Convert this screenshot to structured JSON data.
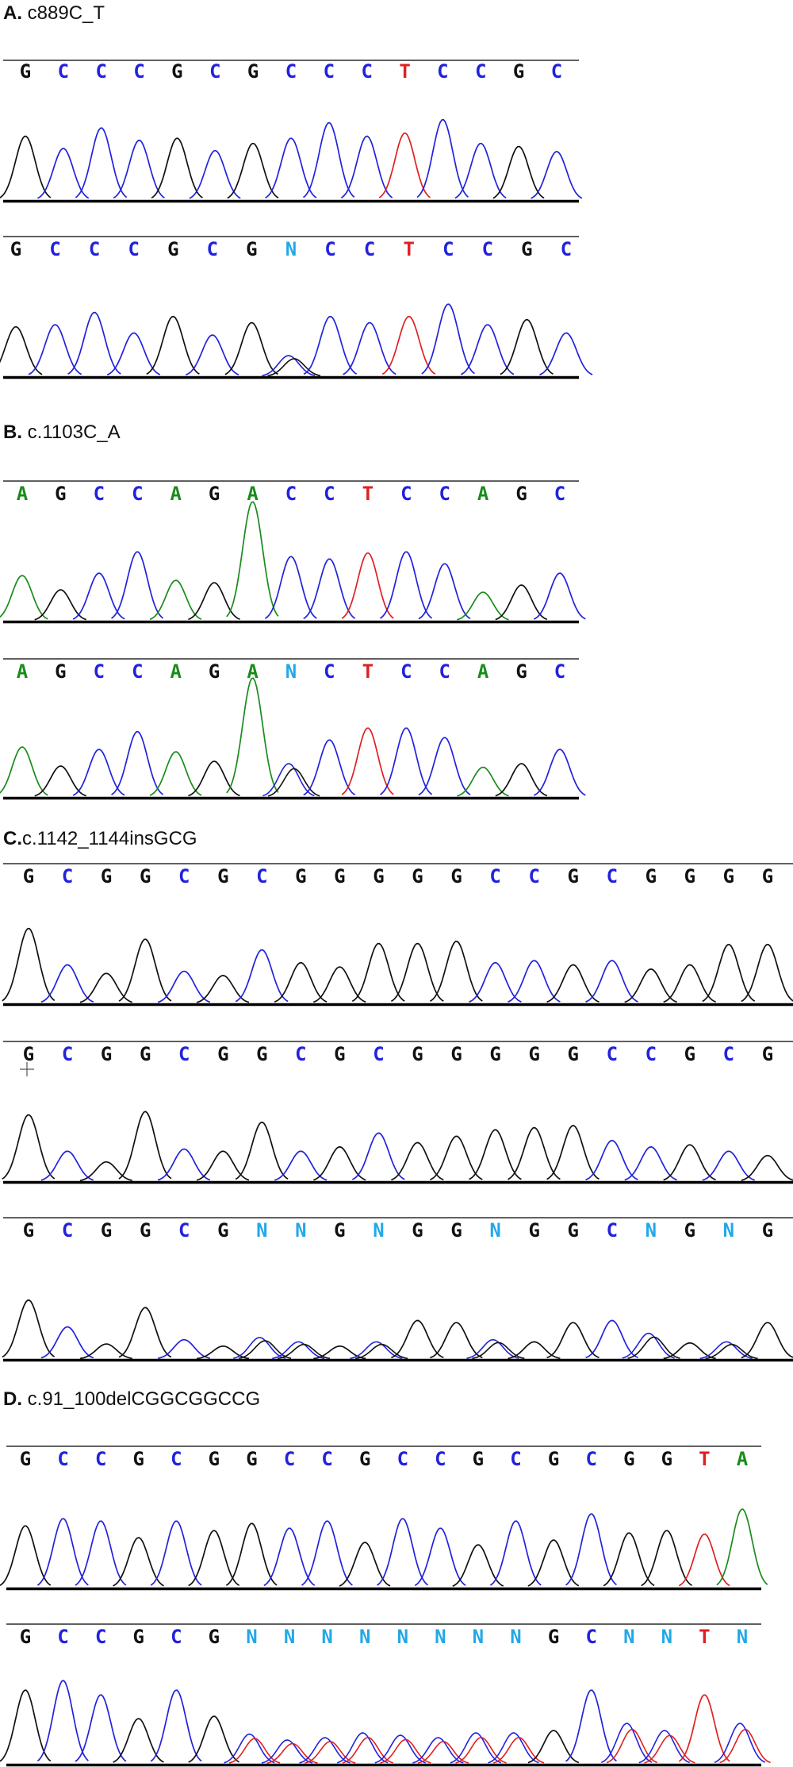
{
  "colors": {
    "A": "#1a8c1a",
    "C": "#2222dd",
    "G": "#111111",
    "T": "#e02020",
    "N": "#22a8e8",
    "axis": "#000000",
    "rule": "#000000"
  },
  "panels": [
    {
      "letter": "A.",
      "name": " c889C_T",
      "tracks": [
        {
          "bases": [
            "G",
            "C",
            "C",
            "C",
            "G",
            "C",
            "G",
            "C",
            "C",
            "C",
            "T",
            "C",
            "C",
            "G",
            "C"
          ],
          "peaks": [
            0.62,
            0.5,
            0.7,
            0.58,
            0.6,
            0.48,
            0.55,
            0.6,
            0.75,
            0.62,
            0.65,
            0.78,
            0.55,
            0.52,
            0.47
          ]
        },
        {
          "bases": [
            "G",
            "C",
            "C",
            "C",
            "G",
            "C",
            "G",
            "N",
            "C",
            "C",
            "T",
            "C",
            "C",
            "G",
            "C"
          ],
          "peaks": [
            0.48,
            0.5,
            0.62,
            0.42,
            0.58,
            0.4,
            0.52,
            0.2,
            0.58,
            0.52,
            0.58,
            0.7,
            0.5,
            0.55,
            0.42
          ]
        }
      ]
    },
    {
      "letter": "B.",
      "name": " c.1103C_A",
      "tracks": [
        {
          "bases": [
            "A",
            "G",
            "C",
            "C",
            "A",
            "G",
            "A",
            "C",
            "C",
            "T",
            "C",
            "C",
            "A",
            "G",
            "C"
          ],
          "peaks": [
            0.38,
            0.26,
            0.4,
            0.58,
            0.34,
            0.32,
            1.0,
            0.54,
            0.52,
            0.57,
            0.58,
            0.48,
            0.24,
            0.3,
            0.4
          ]
        },
        {
          "bases": [
            "A",
            "G",
            "C",
            "C",
            "A",
            "G",
            "A",
            "N",
            "C",
            "T",
            "C",
            "C",
            "A",
            "G",
            "C"
          ],
          "peaks": [
            0.42,
            0.26,
            0.4,
            0.55,
            0.38,
            0.3,
            1.0,
            0.28,
            0.48,
            0.58,
            0.58,
            0.5,
            0.25,
            0.28,
            0.4
          ]
        }
      ]
    },
    {
      "letter": "C.",
      "name": "c.1142_1144insGCG",
      "tracks": [
        {
          "bases": [
            "G",
            "C",
            "G",
            "G",
            "C",
            "G",
            "C",
            "G",
            "G",
            "G",
            "G",
            "G",
            "C",
            "C",
            "G",
            "C",
            "G",
            "G",
            "G",
            "G"
          ],
          "peaks": [
            0.7,
            0.36,
            0.28,
            0.6,
            0.3,
            0.26,
            0.5,
            0.38,
            0.34,
            0.56,
            0.56,
            0.58,
            0.38,
            0.4,
            0.36,
            0.4,
            0.32,
            0.36,
            0.55,
            0.55
          ]
        },
        {
          "bases": [
            "G",
            "C",
            "G",
            "G",
            "C",
            "G",
            "G",
            "C",
            "G",
            "C",
            "G",
            "G",
            "G",
            "G",
            "G",
            "C",
            "C",
            "G",
            "C",
            "G"
          ],
          "peaks": [
            0.62,
            0.28,
            0.18,
            0.65,
            0.3,
            0.28,
            0.55,
            0.28,
            0.32,
            0.45,
            0.36,
            0.42,
            0.48,
            0.5,
            0.52,
            0.38,
            0.32,
            0.34,
            0.28,
            0.24
          ]
        },
        {
          "bases": [
            "G",
            "C",
            "G",
            "G",
            "C",
            "G",
            "N",
            "N",
            "G",
            "N",
            "G",
            "G",
            "N",
            "G",
            "G",
            "C",
            "N",
            "G",
            "N",
            "G"
          ],
          "peaks": [
            0.55,
            0.3,
            0.14,
            0.48,
            0.18,
            0.12,
            0.2,
            0.16,
            0.12,
            0.16,
            0.36,
            0.34,
            0.18,
            0.16,
            0.34,
            0.36,
            0.24,
            0.15,
            0.16,
            0.34
          ]
        }
      ]
    },
    {
      "letter": "D.",
      "name": " c.91_100delCGGCGGCCG",
      "tracks": [
        {
          "bases": [
            "G",
            "C",
            "C",
            "G",
            "C",
            "G",
            "G",
            "C",
            "C",
            "G",
            "C",
            "C",
            "G",
            "C",
            "G",
            "C",
            "G",
            "G",
            "T",
            "A"
          ],
          "peaks": [
            0.52,
            0.58,
            0.56,
            0.42,
            0.56,
            0.48,
            0.54,
            0.5,
            0.56,
            0.38,
            0.58,
            0.5,
            0.36,
            0.56,
            0.4,
            0.62,
            0.46,
            0.48,
            0.45,
            0.66
          ]
        },
        {
          "bases": [
            "G",
            "C",
            "C",
            "G",
            "C",
            "G",
            "N",
            "N",
            "N",
            "N",
            "N",
            "N",
            "N",
            "N",
            "G",
            "C",
            "N",
            "N",
            "T",
            "N"
          ],
          "peaks": [
            0.62,
            0.7,
            0.58,
            0.38,
            0.62,
            0.4,
            0.25,
            0.2,
            0.22,
            0.26,
            0.24,
            0.22,
            0.26,
            0.26,
            0.28,
            0.62,
            0.34,
            0.28,
            0.58,
            0.34
          ]
        }
      ]
    }
  ]
}
